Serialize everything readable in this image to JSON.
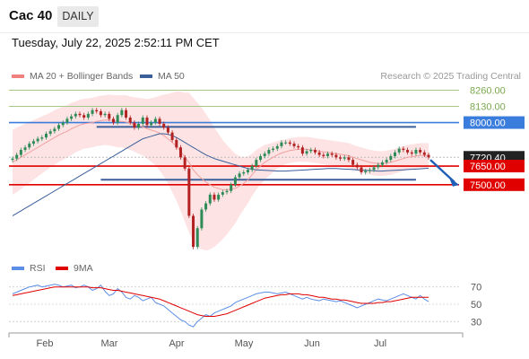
{
  "header": {
    "title": "Cac 40",
    "timeframe_tab": "DAILY"
  },
  "datetime": "Tuesday, July 22, 2025 2:52:11 PM CET",
  "legend": {
    "bollinger_label": "MA 20 + Bollinger Bands",
    "ma50_label": "MA 50",
    "credit": "Research © 2025 Trading Central"
  },
  "rsi_legend": {
    "rsi_label": "RSI",
    "ma_label": "9MA"
  },
  "colors": {
    "bollinger": "#f08080",
    "band_fill": "#fde3e3",
    "ma20": "#f2a0a0",
    "ma50": "#3a5f9a",
    "up": "#2e8b57",
    "down": "#b22222",
    "resistance_blue": "#3b7ddd",
    "support_red": "#e00000",
    "target_green": "#a6c98a",
    "rsi": "#5b8ee6",
    "rsi_ma": "#e00000"
  },
  "chart_data": [
    {
      "type": "candlestick",
      "x_labels": [
        "Feb",
        "Mar",
        "Apr",
        "May",
        "Jun",
        "Jul"
      ],
      "price_levels": [
        {
          "value": 8260.0,
          "label": "8260.00",
          "kind": "target"
        },
        {
          "value": 8130.0,
          "label": "8130.00",
          "kind": "target"
        },
        {
          "value": 8000.0,
          "label": "8000.00",
          "kind": "resistance"
        },
        {
          "value": 7720.4,
          "label": "7720.40",
          "kind": "last"
        },
        {
          "value": 7650.0,
          "label": "7650.00",
          "kind": "support"
        },
        {
          "value": 7500.0,
          "label": "7500.00",
          "kind": "support"
        }
      ],
      "channel_lines": [
        7965,
        7540
      ],
      "ylim": [
        6950,
        8300
      ],
      "close": [
        7710,
        7740,
        7780,
        7800,
        7830,
        7850,
        7870,
        7880,
        7910,
        7930,
        7950,
        7980,
        8000,
        8030,
        8050,
        8070,
        8060,
        8040,
        8070,
        8100,
        8090,
        8060,
        8070,
        8030,
        8000,
        8060,
        8100,
        8040,
        8000,
        7960,
        7990,
        8040,
        7980,
        8000,
        8030,
        7990,
        7960,
        7920,
        7860,
        7800,
        7720,
        7630,
        7250,
        7000,
        7150,
        7300,
        7350,
        7420,
        7380,
        7420,
        7440,
        7450,
        7500,
        7560,
        7590,
        7600,
        7620,
        7650,
        7700,
        7730,
        7750,
        7780,
        7790,
        7810,
        7840,
        7840,
        7830,
        7810,
        7800,
        7750,
        7770,
        7780,
        7760,
        7740,
        7730,
        7750,
        7740,
        7720,
        7710,
        7720,
        7700,
        7660,
        7640,
        7600,
        7610,
        7620,
        7640,
        7660,
        7680,
        7700,
        7730,
        7760,
        7790,
        7780,
        7760,
        7750,
        7780,
        7760,
        7740,
        7720
      ],
      "ma20": [
        7680,
        7700,
        7720,
        7740,
        7760,
        7780,
        7800,
        7820,
        7840,
        7860,
        7880,
        7900,
        7915,
        7930,
        7950,
        7965,
        7980,
        7990,
        7995,
        8000,
        8010,
        8015,
        8020,
        8020,
        8015,
        8010,
        8010,
        8005,
        7995,
        7985,
        7975,
        7965,
        7950,
        7940,
        7930,
        7915,
        7895,
        7870,
        7840,
        7810,
        7770,
        7720,
        7680,
        7620,
        7580,
        7550,
        7520,
        7500,
        7480,
        7470,
        7460,
        7460,
        7465,
        7470,
        7490,
        7510,
        7540,
        7580,
        7620,
        7650,
        7680,
        7700,
        7720,
        7740,
        7755,
        7765,
        7775,
        7780,
        7785,
        7785,
        7785,
        7780,
        7775,
        7770,
        7765,
        7760,
        7755,
        7750,
        7745,
        7740,
        7735,
        7720,
        7710,
        7700,
        7690,
        7680,
        7675,
        7670,
        7670,
        7675,
        7680,
        7690,
        7700,
        7710,
        7720,
        7725,
        7730,
        7735,
        7735,
        7735
      ],
      "bb_width": [
        260,
        260,
        255,
        250,
        245,
        240,
        235,
        230,
        225,
        220,
        220,
        215,
        215,
        210,
        210,
        205,
        205,
        200,
        200,
        200,
        200,
        200,
        200,
        205,
        205,
        210,
        210,
        215,
        215,
        220,
        225,
        230,
        240,
        255,
        275,
        300,
        330,
        360,
        400,
        440,
        480,
        520,
        560,
        580,
        580,
        570,
        550,
        520,
        480,
        440,
        400,
        360,
        320,
        280,
        240,
        210,
        190,
        170,
        160,
        150,
        140,
        130,
        120,
        110,
        105,
        100,
        100,
        100,
        100,
        100,
        100,
        100,
        100,
        100,
        100,
        100,
        100,
        100,
        100,
        100,
        100,
        100,
        100,
        100,
        100,
        100,
        100,
        100,
        100,
        100,
        100,
        100,
        100,
        100,
        100,
        100,
        100,
        100,
        100,
        100
      ],
      "ma50": [
        7250,
        7270,
        7290,
        7310,
        7330,
        7350,
        7370,
        7390,
        7410,
        7430,
        7450,
        7470,
        7490,
        7510,
        7530,
        7550,
        7570,
        7590,
        7610,
        7630,
        7650,
        7670,
        7690,
        7710,
        7730,
        7750,
        7770,
        7790,
        7810,
        7830,
        7850,
        7870,
        7880,
        7890,
        7900,
        7910,
        7910,
        7905,
        7895,
        7880,
        7860,
        7840,
        7820,
        7800,
        7780,
        7760,
        7740,
        7725,
        7710,
        7700,
        7690,
        7680,
        7670,
        7660,
        7650,
        7640,
        7630,
        7625,
        7620,
        7618,
        7616,
        7614,
        7612,
        7610,
        7610,
        7610,
        7612,
        7614,
        7616,
        7618,
        7620,
        7622,
        7624,
        7626,
        7628,
        7630,
        7630,
        7630,
        7628,
        7626,
        7624,
        7622,
        7620,
        7618,
        7616,
        7614,
        7612,
        7610,
        7610,
        7612,
        7614,
        7616,
        7618,
        7620,
        7622,
        7624,
        7626,
        7628,
        7630,
        7632
      ]
    },
    {
      "type": "line",
      "title": "RSI",
      "y_ticks": [
        70,
        50,
        30
      ],
      "ylim": [
        20,
        80
      ],
      "series": [
        {
          "name": "RSI",
          "values": [
            62,
            64,
            66,
            68,
            70,
            71,
            72,
            70,
            71,
            72,
            73,
            72,
            70,
            71,
            72,
            69,
            70,
            72,
            70,
            66,
            68,
            72,
            65,
            60,
            62,
            68,
            64,
            58,
            56,
            60,
            58,
            54,
            56,
            58,
            52,
            50,
            48,
            44,
            40,
            36,
            32,
            30,
            26,
            24,
            30,
            34,
            38,
            36,
            40,
            42,
            44,
            46,
            48,
            52,
            54,
            56,
            58,
            60,
            62,
            63,
            64,
            64,
            63,
            62,
            63,
            64,
            62,
            60,
            58,
            56,
            58,
            56,
            55,
            54,
            56,
            55,
            54,
            53,
            54,
            52,
            50,
            48,
            46,
            48,
            50,
            52,
            54,
            56,
            55,
            54,
            56,
            58,
            60,
            62,
            60,
            58,
            56,
            60,
            56,
            53
          ]
        },
        {
          "name": "9MA",
          "values": [
            60,
            61,
            62,
            63,
            64,
            65,
            66,
            67,
            68,
            69,
            70,
            70,
            70,
            70,
            70,
            70,
            70,
            70,
            70,
            69,
            69,
            69,
            68,
            67,
            66,
            66,
            65,
            64,
            63,
            62,
            61,
            60,
            59,
            58,
            57,
            56,
            54,
            52,
            50,
            48,
            46,
            44,
            42,
            40,
            38,
            37,
            36,
            36,
            36,
            37,
            38,
            39,
            41,
            43,
            45,
            47,
            49,
            51,
            53,
            55,
            57,
            58,
            59,
            60,
            61,
            61,
            62,
            62,
            62,
            61,
            61,
            60,
            59,
            58,
            58,
            57,
            56,
            56,
            55,
            55,
            54,
            53,
            52,
            51,
            51,
            51,
            51,
            52,
            52,
            53,
            53,
            54,
            55,
            56,
            57,
            58,
            58,
            58,
            58,
            58
          ]
        }
      ]
    }
  ]
}
